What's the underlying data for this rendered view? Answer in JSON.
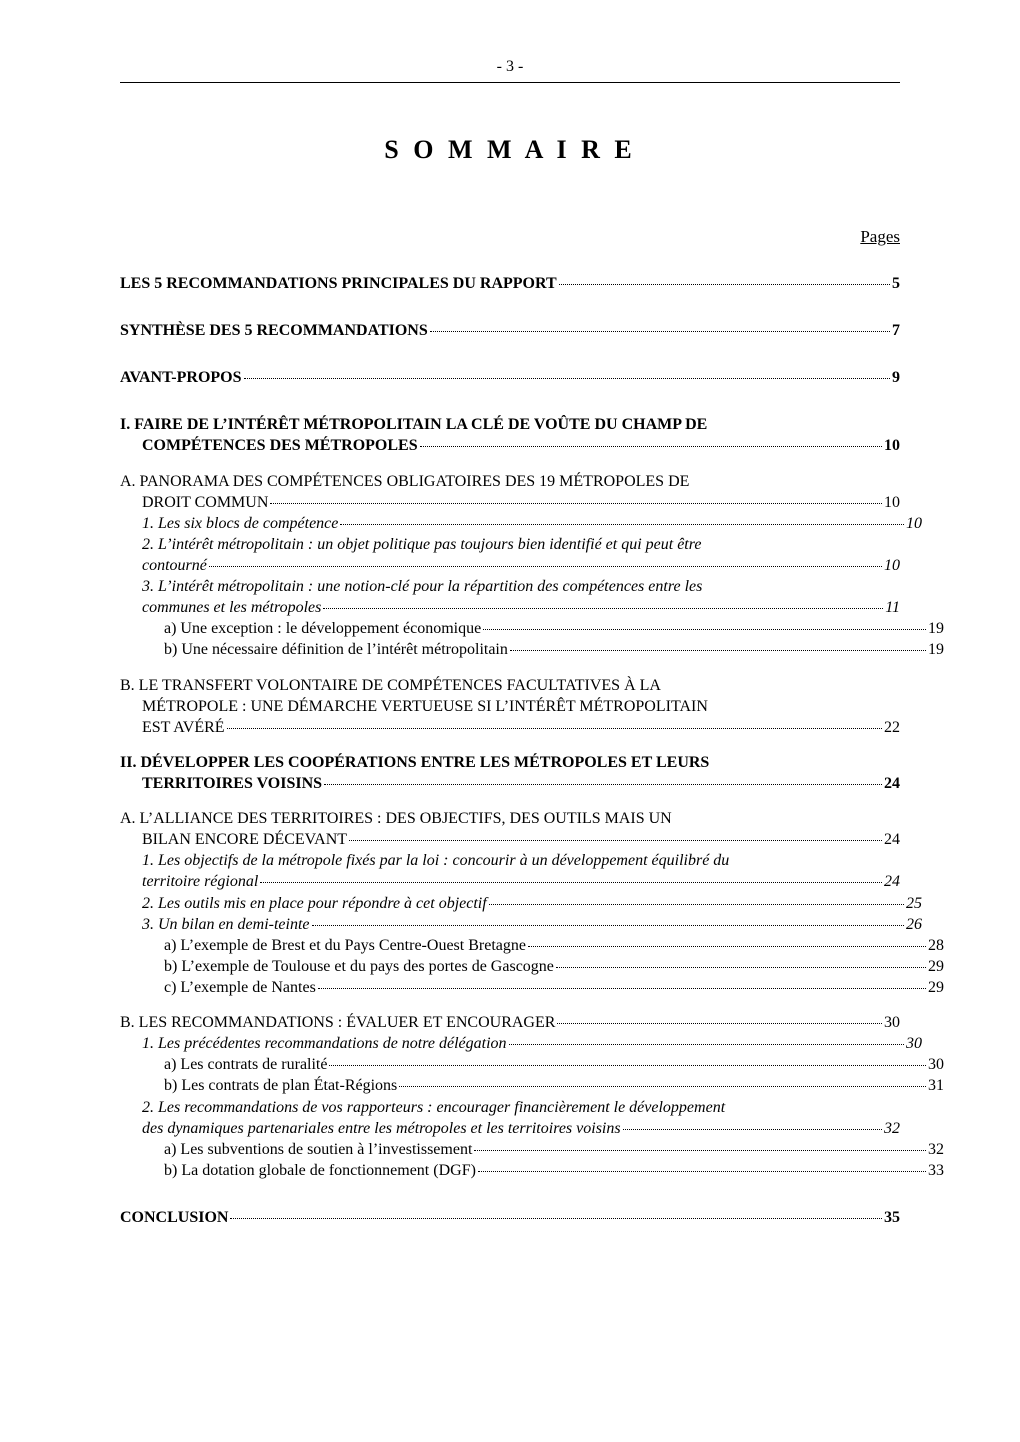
{
  "page_header": {
    "number": "- 3 -"
  },
  "title": "S O M M A I R E",
  "pages_label": "Pages",
  "toc": {
    "recs_principales": {
      "label": "LES 5 RECOMMANDATIONS PRINCIPALES DU RAPPORT",
      "page": "5"
    },
    "synthese": {
      "label": "SYNTHÈSE DES 5 RECOMMANDATIONS",
      "page": "7"
    },
    "avant_propos": {
      "label": "AVANT-PROPOS",
      "page": "9"
    },
    "I": {
      "line1": "I. FAIRE DE L’INTÉRÊT MÉTROPOLITAIN LA CLÉ DE VOÛTE DU CHAMP DE",
      "line2": "COMPÉTENCES DES MÉTROPOLES",
      "page": "10"
    },
    "I_A": {
      "line1": "A. PANORAMA DES COMPÉTENCES OBLIGATOIRES DES 19 MÉTROPOLES DE",
      "line2": "DROIT COMMUN",
      "page": "10"
    },
    "I_A_1": {
      "label": "1. Les six blocs de compétence",
      "page": "10"
    },
    "I_A_2": {
      "line1": "2. L’intérêt métropolitain : un objet politique pas toujours bien identifié et qui peut être",
      "line2": "contourné",
      "page": "10"
    },
    "I_A_3": {
      "line1": "3. L’intérêt métropolitain : une notion-clé pour la répartition des compétences entre les",
      "line2": "communes et les métropoles",
      "page": "11"
    },
    "I_A_3_a": {
      "label": "a) Une exception : le développement économique",
      "page": "19"
    },
    "I_A_3_b": {
      "label": "b) Une nécessaire définition de l’intérêt métropolitain",
      "page": "19"
    },
    "I_B": {
      "line1": "B. LE TRANSFERT VOLONTAIRE DE COMPÉTENCES FACULTATIVES À LA",
      "line2": "MÉTROPOLE : UNE DÉMARCHE VERTUEUSE SI L’INTÉRÊT MÉTROPOLITAIN",
      "line3": "EST AVÉRÉ",
      "page": "22"
    },
    "II": {
      "line1": "II. DÉVELOPPER LES COOPÉRATIONS ENTRE LES MÉTROPOLES ET LEURS",
      "line2": "TERRITOIRES VOISINS",
      "page": "24"
    },
    "II_A": {
      "line1": "A. L’ALLIANCE DES TERRITOIRES : DES OBJECTIFS, DES OUTILS MAIS UN",
      "line2": "BILAN ENCORE DÉCEVANT",
      "page": "24"
    },
    "II_A_1": {
      "line1": "1. Les objectifs de la métropole fixés par la loi : concourir à un développement équilibré du",
      "line2": "territoire régional",
      "page": "24"
    },
    "II_A_2": {
      "label": "2. Les outils mis en place pour répondre à cet objectif",
      "page": "25"
    },
    "II_A_3": {
      "label": "3. Un bilan en demi-teinte",
      "page": "26"
    },
    "II_A_3_a": {
      "label": "a) L’exemple de Brest et du Pays Centre-Ouest Bretagne",
      "page": "28"
    },
    "II_A_3_b": {
      "label": "b) L’exemple de Toulouse et du pays des portes de Gascogne",
      "page": "29"
    },
    "II_A_3_c": {
      "label": "c) L’exemple de Nantes",
      "page": "29"
    },
    "II_B": {
      "label": "B. LES RECOMMANDATIONS : ÉVALUER ET ENCOURAGER",
      "page": "30"
    },
    "II_B_1": {
      "label": "1. Les précédentes recommandations de notre délégation",
      "page": "30"
    },
    "II_B_1_a": {
      "label": "a) Les contrats de ruralité",
      "page": "30"
    },
    "II_B_1_b": {
      "label": "b) Les contrats de plan État-Régions",
      "page": "31"
    },
    "II_B_2": {
      "line1": "2. Les recommandations de vos rapporteurs : encourager financièrement le développement",
      "line2": "des dynamiques partenariales entre les métropoles et les territoires voisins",
      "page": "32"
    },
    "II_B_2_a": {
      "label": "a) Les subventions de soutien à l’investissement",
      "page": "32"
    },
    "II_B_2_b": {
      "label": "b) La dotation globale de fonctionnement (DGF)",
      "page": "33"
    },
    "conclusion": {
      "label": "CONCLUSION",
      "page": "35"
    }
  }
}
